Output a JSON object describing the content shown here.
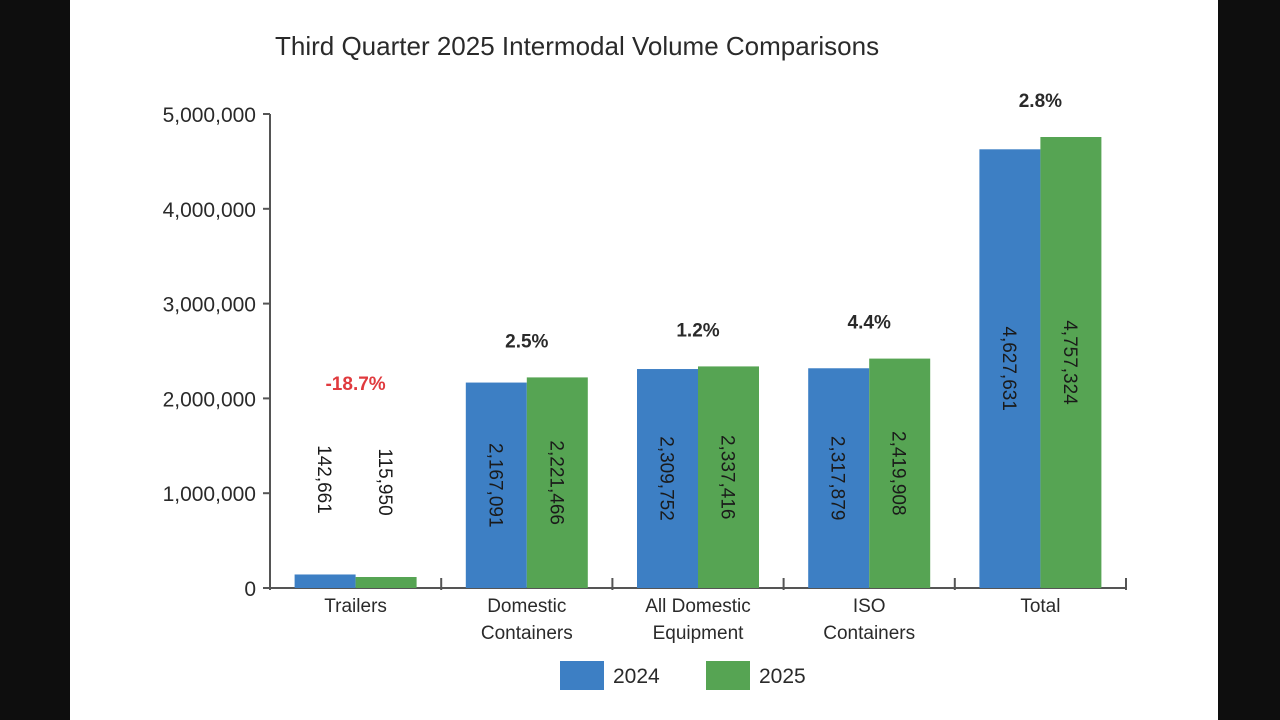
{
  "chart_data": {
    "type": "bar",
    "title": "Third Quarter 2025 Intermodal Volume Comparisons",
    "categories": [
      [
        "Trailers"
      ],
      [
        "Domestic",
        "Containers"
      ],
      [
        "All Domestic",
        "Equipment"
      ],
      [
        "ISO",
        "Containers"
      ],
      [
        "Total"
      ]
    ],
    "series": [
      {
        "name": "2024",
        "color": "#3d7fc4",
        "values": [
          142661,
          2167091,
          2309752,
          2317879,
          4627631
        ],
        "labels": [
          "142,661",
          "2,167,091",
          "2,309,752",
          "2,317,879",
          "4,627,631"
        ]
      },
      {
        "name": "2025",
        "color": "#56a453",
        "values": [
          115950,
          2221466,
          2337416,
          2419908,
          4757324
        ],
        "labels": [
          "115,950",
          "2,221,466",
          "2,337,416",
          "2,419,908",
          "4,757,324"
        ]
      }
    ],
    "pct_change": [
      "-18.7%",
      "2.5%",
      "1.2%",
      "4.4%",
      "2.8%"
    ],
    "negative_color": "#e03a3e",
    "ylim": [
      0,
      5000000
    ],
    "yticks": [
      "0",
      "1,000,000",
      "2,000,000",
      "3,000,000",
      "4,000,000",
      "5,000,000"
    ],
    "xlabel": "",
    "ylabel": "",
    "grid": false,
    "legend": "bottom-center"
  }
}
